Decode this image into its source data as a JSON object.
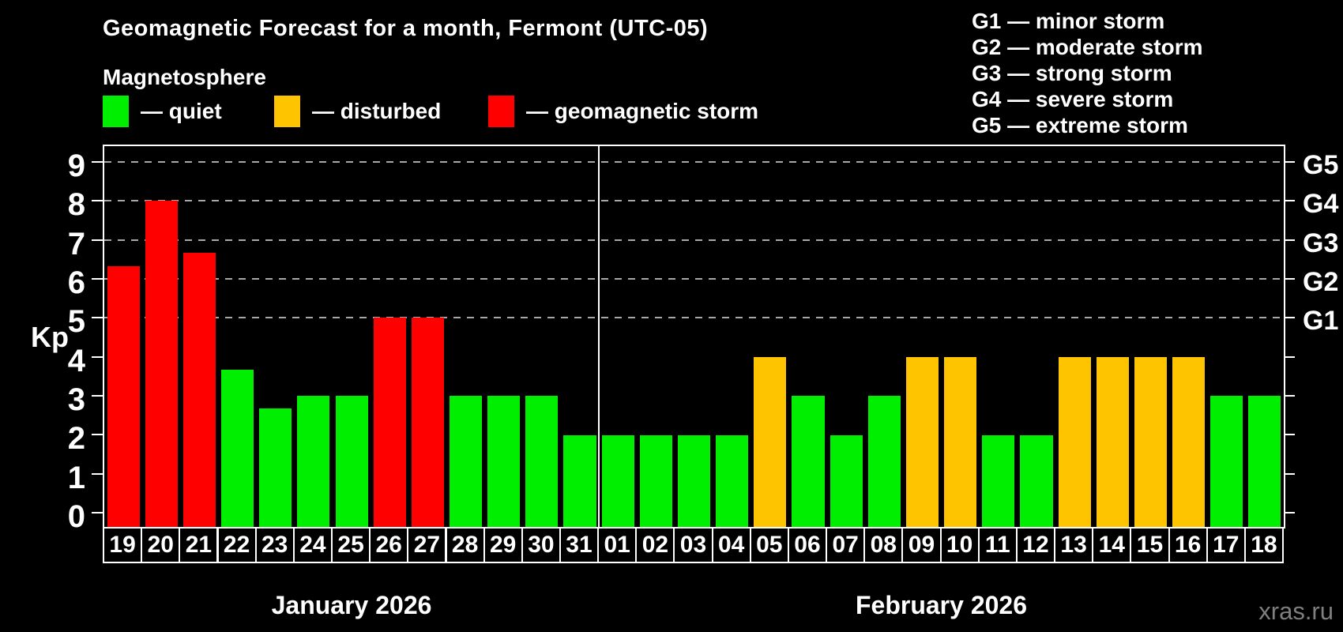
{
  "title": "Geomagnetic Forecast for a month, Fermont (UTC-05)",
  "subtitle": "Magnetosphere",
  "legend": {
    "items": [
      {
        "id": "quiet",
        "label": "— quiet",
        "color": "#00ee00"
      },
      {
        "id": "disturbed",
        "label": "— disturbed",
        "color": "#ffc400"
      },
      {
        "id": "storm",
        "label": "— geomagnetic storm",
        "color": "#ff0000"
      }
    ]
  },
  "g_legend": [
    "G1 — minor storm",
    "G2 — moderate storm",
    "G3 — strong storm",
    "G4 — severe storm",
    "G5 — extreme storm"
  ],
  "watermark": "xras.ru",
  "chart_data": {
    "type": "bar",
    "ylabel": "Kp",
    "ylim": [
      -0.4,
      9.4
    ],
    "y_ticks": [
      0,
      1,
      2,
      3,
      4,
      5,
      6,
      7,
      8,
      9
    ],
    "gridlines_at": [
      5,
      6,
      7,
      8,
      9
    ],
    "grid": "dashed-horizontal",
    "right_axis_labels": [
      {
        "label": "G1",
        "value": 5
      },
      {
        "label": "G2",
        "value": 6
      },
      {
        "label": "G3",
        "value": 7
      },
      {
        "label": "G4",
        "value": 8
      },
      {
        "label": "G5",
        "value": 9
      }
    ],
    "months": [
      {
        "label": "January 2026",
        "days": 13
      },
      {
        "label": "February 2026",
        "days": 18
      }
    ],
    "state_colors": {
      "quiet": "#00ee00",
      "disturbed": "#ffc400",
      "storm": "#ff0000"
    },
    "bars": [
      {
        "day": "19",
        "value": 6.33,
        "state": "storm"
      },
      {
        "day": "20",
        "value": 8,
        "state": "storm"
      },
      {
        "day": "21",
        "value": 6.67,
        "state": "storm"
      },
      {
        "day": "22",
        "value": 3.67,
        "state": "quiet"
      },
      {
        "day": "23",
        "value": 2.67,
        "state": "quiet"
      },
      {
        "day": "24",
        "value": 3,
        "state": "quiet"
      },
      {
        "day": "25",
        "value": 3,
        "state": "quiet"
      },
      {
        "day": "26",
        "value": 5,
        "state": "storm"
      },
      {
        "day": "27",
        "value": 5,
        "state": "storm"
      },
      {
        "day": "28",
        "value": 3,
        "state": "quiet"
      },
      {
        "day": "29",
        "value": 3,
        "state": "quiet"
      },
      {
        "day": "30",
        "value": 3,
        "state": "quiet"
      },
      {
        "day": "31",
        "value": 2,
        "state": "quiet"
      },
      {
        "day": "01",
        "value": 2,
        "state": "quiet"
      },
      {
        "day": "02",
        "value": 2,
        "state": "quiet"
      },
      {
        "day": "03",
        "value": 2,
        "state": "quiet"
      },
      {
        "day": "04",
        "value": 2,
        "state": "quiet"
      },
      {
        "day": "05",
        "value": 4,
        "state": "disturbed"
      },
      {
        "day": "06",
        "value": 3,
        "state": "quiet"
      },
      {
        "day": "07",
        "value": 2,
        "state": "quiet"
      },
      {
        "day": "08",
        "value": 3,
        "state": "quiet"
      },
      {
        "day": "09",
        "value": 4,
        "state": "disturbed"
      },
      {
        "day": "10",
        "value": 4,
        "state": "disturbed"
      },
      {
        "day": "11",
        "value": 2,
        "state": "quiet"
      },
      {
        "day": "12",
        "value": 2,
        "state": "quiet"
      },
      {
        "day": "13",
        "value": 4,
        "state": "disturbed"
      },
      {
        "day": "14",
        "value": 4,
        "state": "disturbed"
      },
      {
        "day": "15",
        "value": 4,
        "state": "disturbed"
      },
      {
        "day": "16",
        "value": 4,
        "state": "disturbed"
      },
      {
        "day": "17",
        "value": 3,
        "state": "quiet"
      },
      {
        "day": "18",
        "value": 3,
        "state": "quiet"
      }
    ]
  }
}
